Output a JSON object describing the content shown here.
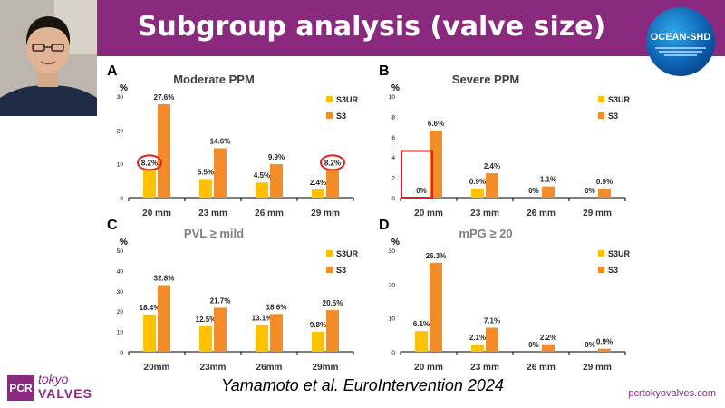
{
  "slide": {
    "title": "Subgroup analysis (valve size)",
    "citation": "Yamamoto et al. EuroIntervention 2024",
    "website": "pcrtokyovalves.com",
    "logo_pcr": "PCR",
    "logo_tokyo": "tokyo",
    "logo_valves": "VALVES",
    "ocean_logo": "OCEAN-SHD"
  },
  "colors": {
    "banner": "#8a2a7e",
    "s3ur": "#ffc000",
    "s3": "#f28c28",
    "highlight": "#e02020"
  },
  "chart_data": [
    {
      "letter": "A",
      "type": "bar",
      "title": "Moderate PPM",
      "ylabel": "%",
      "ylim": [
        0,
        30
      ],
      "yticks": [
        "0",
        "10",
        "20",
        "30"
      ],
      "categories": [
        "20 mm",
        "23 mm",
        "26 mm",
        "29 mm"
      ],
      "series": [
        {
          "name": "S3UR",
          "values": [
            8.2,
            5.5,
            4.5,
            2.4
          ],
          "labels": [
            "8.2%",
            "5.5%",
            "4.5%",
            "2.4%"
          ]
        },
        {
          "name": "S3",
          "values": [
            27.6,
            14.6,
            9.9,
            8.2
          ],
          "labels": [
            "27.6%",
            "14.6%",
            "9.9%",
            "8.2%"
          ]
        }
      ],
      "highlight": "circles around 20 mm S3UR and 29 mm S3 labels"
    },
    {
      "letter": "B",
      "type": "bar",
      "title": "Severe PPM",
      "ylabel": "%",
      "ylim": [
        0,
        10
      ],
      "yticks": [
        "0",
        "2",
        "4",
        "6",
        "8",
        "10"
      ],
      "categories": [
        "20 mm",
        "23 mm",
        "26 mm",
        "29 mm"
      ],
      "series": [
        {
          "name": "S3UR",
          "values": [
            0,
            0.9,
            0,
            0
          ],
          "labels": [
            "0%",
            "0.9%",
            "0%",
            "0%"
          ]
        },
        {
          "name": "S3",
          "values": [
            6.6,
            2.4,
            1.1,
            0.9
          ],
          "labels": [
            "6.6%",
            "2.4%",
            "1.1%",
            "0.9%"
          ]
        }
      ],
      "highlight": "box around 20 mm S3UR"
    },
    {
      "letter": "C",
      "type": "bar",
      "title": "PVL ≥ mild",
      "ylabel": "%",
      "ylim": [
        0,
        50
      ],
      "yticks": [
        "0",
        "10",
        "20",
        "30",
        "40",
        "50"
      ],
      "categories": [
        "20mm",
        "23mm",
        "26mm",
        "29mm"
      ],
      "series": [
        {
          "name": "S3UR",
          "values": [
            18.4,
            12.5,
            13.1,
            9.8
          ],
          "labels": [
            "18.4%",
            "12.5%",
            "13.1%",
            "9.8%"
          ]
        },
        {
          "name": "S3",
          "values": [
            32.8,
            21.7,
            18.6,
            20.5
          ],
          "labels": [
            "32.8%",
            "21.7%",
            "18.6%",
            "20.5%"
          ]
        }
      ]
    },
    {
      "letter": "D",
      "type": "bar",
      "title": "mPG ≥ 20",
      "ylabel": "%",
      "ylim": [
        0,
        30
      ],
      "yticks": [
        "0",
        "10",
        "20",
        "30"
      ],
      "categories": [
        "20 mm",
        "23 mm",
        "26 mm",
        "29 mm"
      ],
      "series": [
        {
          "name": "S3UR",
          "values": [
            6.1,
            2.1,
            0,
            0
          ],
          "labels": [
            "6.1%",
            "2.1%",
            "0%",
            "0%"
          ]
        },
        {
          "name": "S3",
          "values": [
            26.3,
            7.1,
            2.2,
            0.9
          ],
          "labels": [
            "26.3%",
            "7.1%",
            "2.2%",
            "0.9%"
          ]
        }
      ]
    }
  ]
}
